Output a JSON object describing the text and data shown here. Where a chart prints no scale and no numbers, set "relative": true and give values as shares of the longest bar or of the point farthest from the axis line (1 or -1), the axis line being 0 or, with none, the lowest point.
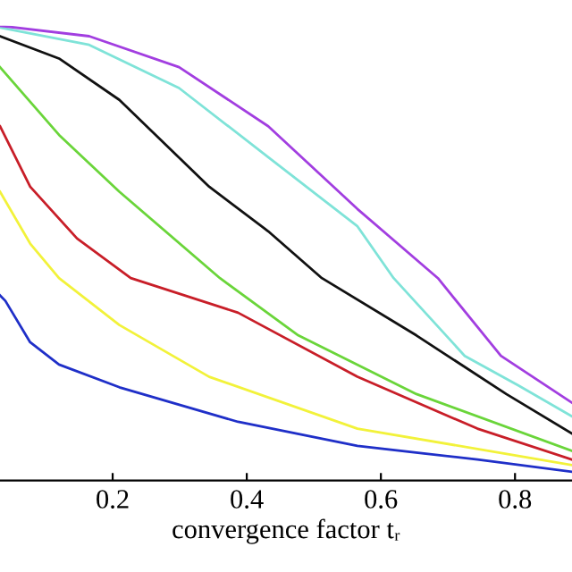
{
  "chart_data": {
    "type": "line",
    "relative": true,
    "xlabel": "convergence factor tᵣ",
    "xlim": [
      0.032,
      0.885
    ],
    "xticks": [
      {
        "value": 0.2,
        "label": "0.2"
      },
      {
        "value": 0.4,
        "label": "0.4"
      },
      {
        "value": 0.6,
        "label": "0.6"
      },
      {
        "value": 0.8,
        "label": "0.8"
      }
    ],
    "grid": false,
    "series": [
      {
        "color": "#1f2fc8",
        "x": [
          0.032,
          0.04,
          0.077,
          0.12,
          0.21,
          0.387,
          0.565,
          0.744,
          0.885
        ],
        "values": [
          0.407,
          0.395,
          0.304,
          0.255,
          0.205,
          0.129,
          0.076,
          0.046,
          0.019
        ]
      },
      {
        "color": "#f2f23a",
        "x": [
          0.032,
          0.077,
          0.12,
          0.21,
          0.344,
          0.565,
          0.885
        ],
        "values": [
          0.635,
          0.521,
          0.445,
          0.342,
          0.228,
          0.114,
          0.034
        ]
      },
      {
        "color": "#c81e28",
        "x": [
          0.032,
          0.077,
          0.147,
          0.227,
          0.387,
          0.565,
          0.744,
          0.885
        ],
        "values": [
          0.779,
          0.646,
          0.532,
          0.445,
          0.369,
          0.228,
          0.114,
          0.046
        ]
      },
      {
        "color": "#6ad53a",
        "x": [
          0.032,
          0.12,
          0.21,
          0.36,
          0.477,
          0.653,
          0.885
        ],
        "values": [
          0.909,
          0.76,
          0.635,
          0.445,
          0.319,
          0.19,
          0.065
        ]
      },
      {
        "color": "#111111",
        "x": [
          0.032,
          0.12,
          0.21,
          0.344,
          0.432,
          0.512,
          0.653,
          0.787,
          0.885
        ],
        "values": [
          0.977,
          0.928,
          0.837,
          0.646,
          0.548,
          0.445,
          0.319,
          0.19,
          0.103
        ]
      },
      {
        "color": "#7fe3d8",
        "x": [
          0.032,
          0.165,
          0.299,
          0.432,
          0.565,
          0.619,
          0.725,
          0.805,
          0.885
        ],
        "values": [
          0.996,
          0.958,
          0.863,
          0.711,
          0.559,
          0.445,
          0.274,
          0.209,
          0.141
        ]
      },
      {
        "color": "#a23ee0",
        "x": [
          0.032,
          0.165,
          0.299,
          0.432,
          0.565,
          0.685,
          0.779,
          0.885
        ],
        "values": [
          1.0,
          0.977,
          0.909,
          0.779,
          0.597,
          0.445,
          0.274,
          0.171
        ]
      }
    ]
  }
}
